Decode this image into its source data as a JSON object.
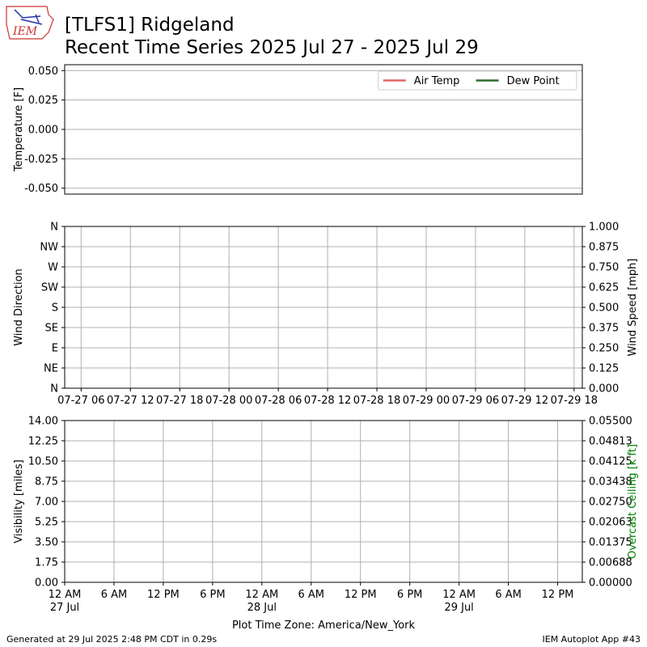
{
  "header": {
    "logo": "IEM",
    "title": "[TLFS1] Ridgeland",
    "subtitle": "Recent Time Series 2025 Jul 27 - 2025 Jul 29"
  },
  "chart_data": [
    {
      "type": "line",
      "ylabel": "Temperature [F]",
      "xlim": [
        "2025-07-27T04:00",
        "2025-07-29T19:00"
      ],
      "ylim": [
        -0.055,
        0.055
      ],
      "yticks": [
        {
          "value": -0.05,
          "label": "-0.050"
        },
        {
          "value": -0.025,
          "label": "-0.025"
        },
        {
          "value": 0,
          "label": "0.000"
        },
        {
          "value": 0.025,
          "label": "0.025"
        },
        {
          "value": 0.05,
          "label": "0.050"
        }
      ],
      "grid": "y",
      "legend": "upper right",
      "series": [
        {
          "name": "Air Temp",
          "color": "#e06666",
          "x": [],
          "values": []
        },
        {
          "name": "Dew Point",
          "color": "#2e6b30",
          "x": [],
          "values": []
        }
      ]
    },
    {
      "type": "line",
      "ylabel": "Wind Direction",
      "y2label": "Wind Speed [mph]",
      "xlim": [
        "2025-07-27T04:00",
        "2025-07-29T19:00"
      ],
      "xticks": [
        {
          "value": "2025-07-27T06:00",
          "label": "07-27 06"
        },
        {
          "value": "2025-07-27T12:00",
          "label": "07-27 12"
        },
        {
          "value": "2025-07-27T18:00",
          "label": "07-27 18"
        },
        {
          "value": "2025-07-28T00:00",
          "label": "07-28 00"
        },
        {
          "value": "2025-07-28T06:00",
          "label": "07-28 06"
        },
        {
          "value": "2025-07-28T12:00",
          "label": "07-28 12"
        },
        {
          "value": "2025-07-28T18:00",
          "label": "07-28 18"
        },
        {
          "value": "2025-07-29T00:00",
          "label": "07-29 00"
        },
        {
          "value": "2025-07-29T06:00",
          "label": "07-29 06"
        },
        {
          "value": "2025-07-29T12:00",
          "label": "07-29 12"
        },
        {
          "value": "2025-07-29T18:00",
          "label": "07-29 18"
        }
      ],
      "ylim": [
        0,
        360
      ],
      "yticks": [
        {
          "value": 0,
          "label": "N"
        },
        {
          "value": 45,
          "label": "NE"
        },
        {
          "value": 90,
          "label": "E"
        },
        {
          "value": 135,
          "label": "SE"
        },
        {
          "value": 180,
          "label": "S"
        },
        {
          "value": 225,
          "label": "SW"
        },
        {
          "value": 270,
          "label": "W"
        },
        {
          "value": 315,
          "label": "NW"
        },
        {
          "value": 360,
          "label": "N"
        }
      ],
      "y2lim": [
        0,
        1
      ],
      "y2ticks": [
        {
          "value": 0,
          "label": "0.000"
        },
        {
          "value": 0.125,
          "label": "0.125"
        },
        {
          "value": 0.25,
          "label": "0.250"
        },
        {
          "value": 0.375,
          "label": "0.375"
        },
        {
          "value": 0.5,
          "label": "0.500"
        },
        {
          "value": 0.625,
          "label": "0.625"
        },
        {
          "value": 0.75,
          "label": "0.750"
        },
        {
          "value": 0.875,
          "label": "0.875"
        },
        {
          "value": 1,
          "label": "1.000"
        }
      ],
      "grid": "both"
    },
    {
      "type": "line",
      "ylabel": "Visibility [miles]",
      "y2label": "Overcast Ceiling [k ft]",
      "y2label_color": "green",
      "xlabel": "Plot Time Zone: America/New_York",
      "xlim": [
        "2025-07-27T00:00",
        "2025-07-29T15:00"
      ],
      "xticks": [
        {
          "value": "2025-07-27T00:00",
          "label": "12 AM\n27 Jul"
        },
        {
          "value": "2025-07-27T06:00",
          "label": "6 AM"
        },
        {
          "value": "2025-07-27T12:00",
          "label": "12 PM"
        },
        {
          "value": "2025-07-27T18:00",
          "label": "6 PM"
        },
        {
          "value": "2025-07-28T00:00",
          "label": "12 AM\n28 Jul"
        },
        {
          "value": "2025-07-28T06:00",
          "label": "6 AM"
        },
        {
          "value": "2025-07-28T12:00",
          "label": "12 PM"
        },
        {
          "value": "2025-07-28T18:00",
          "label": "6 PM"
        },
        {
          "value": "2025-07-29T00:00",
          "label": "12 AM\n29 Jul"
        },
        {
          "value": "2025-07-29T06:00",
          "label": "6 AM"
        },
        {
          "value": "2025-07-29T12:00",
          "label": "12 PM"
        }
      ],
      "ylim": [
        0,
        14
      ],
      "yticks": [
        {
          "value": 0,
          "label": "0.00"
        },
        {
          "value": 1.75,
          "label": "1.75"
        },
        {
          "value": 3.5,
          "label": "3.50"
        },
        {
          "value": 5.25,
          "label": "5.25"
        },
        {
          "value": 7,
          "label": "7.00"
        },
        {
          "value": 8.75,
          "label": "8.75"
        },
        {
          "value": 10.5,
          "label": "10.50"
        },
        {
          "value": 12.25,
          "label": "12.25"
        },
        {
          "value": 14,
          "label": "14.00"
        }
      ],
      "y2lim": [
        0,
        0.055
      ],
      "y2ticks": [
        {
          "value": 0,
          "label": "0.00000"
        },
        {
          "value": 0.006875,
          "label": "0.00688"
        },
        {
          "value": 0.01375,
          "label": "0.01375"
        },
        {
          "value": 0.020625,
          "label": "0.02063"
        },
        {
          "value": 0.0275,
          "label": "0.02750"
        },
        {
          "value": 0.034375,
          "label": "0.03438"
        },
        {
          "value": 0.04125,
          "label": "0.04125"
        },
        {
          "value": 0.048125,
          "label": "0.04813"
        },
        {
          "value": 0.055,
          "label": "0.05500"
        }
      ],
      "grid": "both"
    }
  ],
  "footer": {
    "left": "Generated at 29 Jul 2025 2:48 PM CDT in 0.29s",
    "right": "IEM Autoplot App #43"
  }
}
